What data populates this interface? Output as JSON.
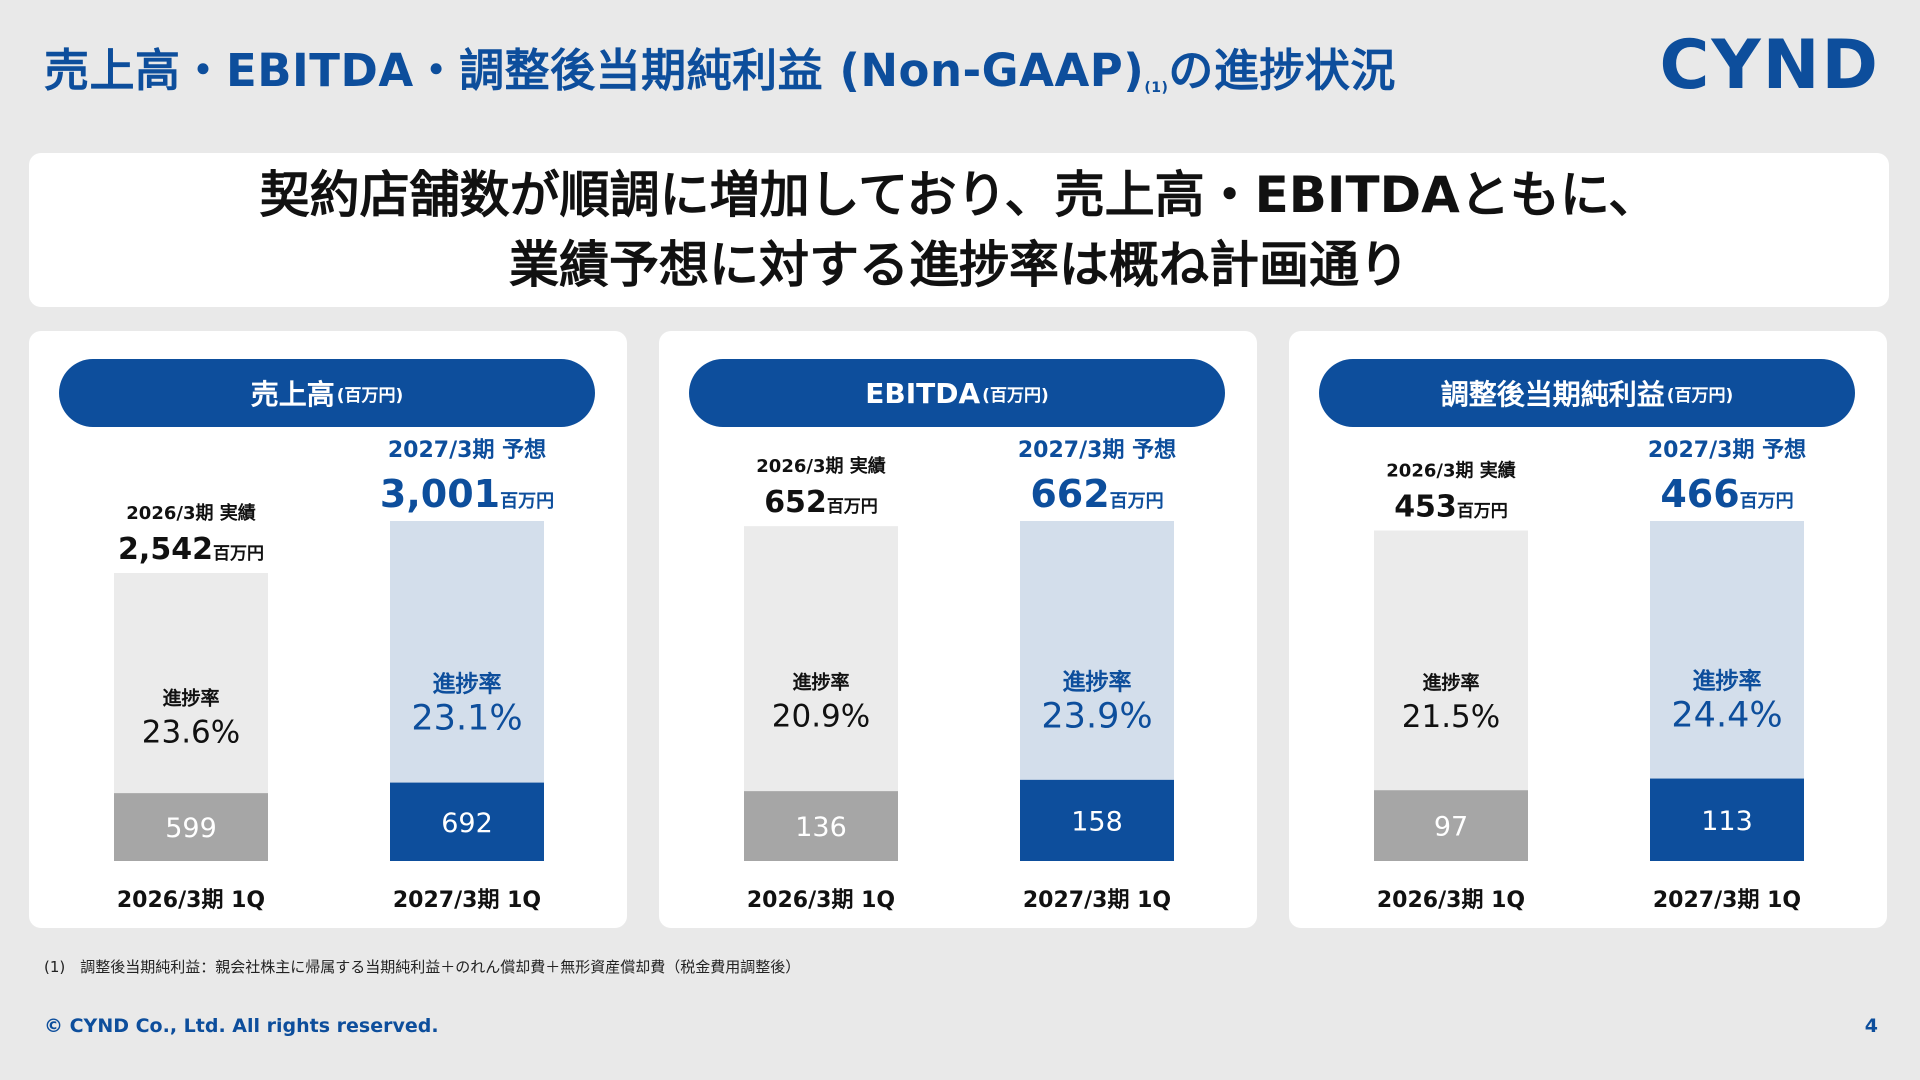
{
  "title": "売上高・EBITDA・調整後当期純利益 (Non-GAAP)",
  "title_note_marker": "(1)",
  "title_suffix": "の進捗状況",
  "logo": "CYND",
  "headline": {
    "line1": "契約店舗数が順調に増加しており、売上高・EBITDAともに、",
    "line2": "業績予想に対する進捗率は概ね計画通り"
  },
  "colors": {
    "brand": "#0d4e9c",
    "prior_year_total": "#ebebeb",
    "prior_year_1q": "#a6a6a6",
    "current_forecast": "#d3deeb",
    "current_1q": "#0d4e9c"
  },
  "chart_data": [
    {
      "type": "bar",
      "title": "売上高",
      "unit_label": "(百万円)",
      "categories": [
        "2026/3期 1Q",
        "2027/3期 1Q"
      ],
      "full_year_labels": [
        "2026/3期 実績",
        "2027/3期 予想"
      ],
      "full_year_values": [
        2542,
        3001
      ],
      "full_year_display": [
        "2,542",
        "3,001"
      ],
      "q1_values": [
        599,
        692
      ],
      "q1_display": [
        "599",
        "692"
      ],
      "progress_label": "進捗率",
      "progress_display": [
        "23.6%",
        "23.1%"
      ],
      "value_unit": "百万円"
    },
    {
      "type": "bar",
      "title": "EBITDA",
      "unit_label": "(百万円)",
      "categories": [
        "2026/3期 1Q",
        "2027/3期 1Q"
      ],
      "full_year_labels": [
        "2026/3期 実績",
        "2027/3期 予想"
      ],
      "full_year_values": [
        652,
        662
      ],
      "full_year_display": [
        "652",
        "662"
      ],
      "q1_values": [
        136,
        158
      ],
      "q1_display": [
        "136",
        "158"
      ],
      "progress_label": "進捗率",
      "progress_display": [
        "20.9%",
        "23.9%"
      ],
      "value_unit": "百万円"
    },
    {
      "type": "bar",
      "title": "調整後当期純利益",
      "unit_label": "(百万円)",
      "categories": [
        "2026/3期 1Q",
        "2027/3期 1Q"
      ],
      "full_year_labels": [
        "2026/3期 実績",
        "2027/3期 予想"
      ],
      "full_year_values": [
        453,
        466
      ],
      "full_year_display": [
        "453",
        "466"
      ],
      "q1_values": [
        97,
        113
      ],
      "q1_display": [
        "97",
        "113"
      ],
      "progress_label": "進捗率",
      "progress_display": [
        "21.5%",
        "24.4%"
      ],
      "value_unit": "百万円"
    }
  ],
  "footnote": "(1)　調整後当期純利益：親会社株主に帰属する当期純利益＋のれん償却費＋無形資産償却費（税金費用調整後）",
  "copyright": "© CYND Co., Ltd. All rights reserved.",
  "page_number": "4"
}
